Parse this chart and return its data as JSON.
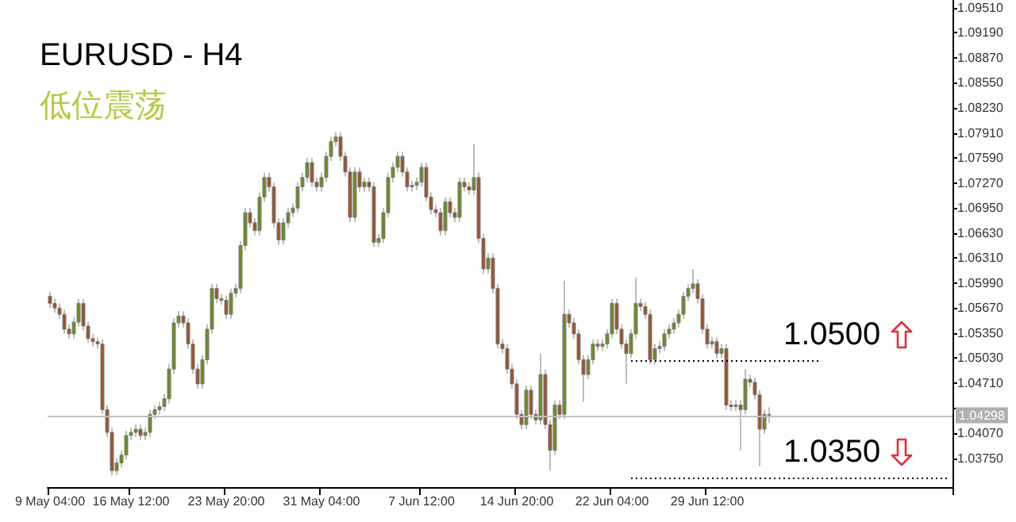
{
  "chart_data": {
    "type": "candlestick",
    "title": "EURUSD - H4",
    "subtitle": "低位震荡",
    "categories": [
      "9 May 04:00",
      null,
      null,
      null,
      null,
      null,
      null,
      null,
      null,
      null,
      null,
      null,
      null,
      null,
      null,
      null,
      null,
      "16 May 12:00",
      null,
      null,
      null,
      null,
      null,
      null,
      null,
      null,
      null,
      null,
      null,
      null,
      null,
      null,
      null,
      null,
      null,
      null,
      null,
      "23 May 20:00",
      null,
      null,
      null,
      null,
      null,
      null,
      null,
      null,
      null,
      null,
      null,
      null,
      null,
      null,
      null,
      null,
      null,
      null,
      null,
      "31 May 04:00",
      null,
      null,
      null,
      null,
      null,
      null,
      null,
      null,
      null,
      null,
      null,
      null,
      null,
      null,
      null,
      null,
      null,
      null,
      null,
      null,
      "7 Jun 12:00",
      null,
      null,
      null,
      null,
      null,
      null,
      null,
      null,
      null,
      null,
      null,
      null,
      null,
      null,
      null,
      null,
      null,
      null,
      null,
      "14 Jun 20:00",
      null,
      null,
      null,
      null,
      null,
      null,
      null,
      null,
      null,
      null,
      null,
      null,
      null,
      null,
      null,
      null,
      null,
      null,
      null,
      "22 Jun 04:00",
      null,
      null,
      null,
      null,
      null,
      null,
      null,
      null,
      null,
      null,
      null,
      null,
      null,
      null,
      null,
      null,
      null,
      null,
      null,
      "29 Jun 12:00",
      null,
      null,
      null,
      null,
      null,
      null,
      null,
      null,
      null,
      null,
      null,
      null,
      null,
      null,
      null,
      null,
      null,
      null,
      null,
      null,
      null,
      null,
      null,
      null,
      null,
      null,
      null,
      null,
      null,
      null,
      null,
      null,
      null,
      null,
      null,
      null,
      null,
      null,
      null,
      null,
      null,
      null,
      null,
      null,
      null,
      null,
      null,
      null,
      null,
      null,
      null
    ],
    "ohlc": [
      [
        1.0582,
        1.0588,
        1.0567,
        1.0573
      ],
      [
        1.0573,
        1.0579,
        1.0561,
        1.0567
      ],
      [
        1.0567,
        1.0573,
        1.0553,
        1.0559
      ],
      [
        1.0559,
        1.0565,
        1.0534,
        1.054
      ],
      [
        1.054,
        1.0546,
        1.0528,
        1.0534
      ],
      [
        1.0534,
        1.0555,
        1.0528,
        1.0549
      ],
      [
        1.0549,
        1.0579,
        1.0543,
        1.0573
      ],
      [
        1.0573,
        1.0579,
        1.0538,
        1.0544
      ],
      [
        1.0544,
        1.055,
        1.0522,
        1.0528
      ],
      [
        1.0528,
        1.0534,
        1.0518,
        1.0524
      ],
      [
        1.0524,
        1.053,
        1.0515,
        1.0521
      ],
      [
        1.0521,
        1.0527,
        1.0431,
        1.0437
      ],
      [
        1.0437,
        1.0443,
        1.0402,
        1.0408
      ],
      [
        1.0408,
        1.0414,
        1.0353,
        1.0359
      ],
      [
        1.0359,
        1.0375,
        1.0353,
        1.0369
      ],
      [
        1.0369,
        1.0385,
        1.0363,
        1.0379
      ],
      [
        1.0379,
        1.041,
        1.0373,
        1.0404
      ],
      [
        1.0404,
        1.0414,
        1.0398,
        1.0408
      ],
      [
        1.0408,
        1.0418,
        1.0402,
        1.0412
      ],
      [
        1.0412,
        1.0418,
        1.0398,
        1.0404
      ],
      [
        1.0404,
        1.0414,
        1.0398,
        1.0408
      ],
      [
        1.0408,
        1.0437,
        1.0402,
        1.0431
      ],
      [
        1.0431,
        1.0443,
        1.0425,
        1.0437
      ],
      [
        1.0437,
        1.0447,
        1.0431,
        1.0441
      ],
      [
        1.0441,
        1.0457,
        1.0435,
        1.0451
      ],
      [
        1.0451,
        1.0495,
        1.0445,
        1.0489
      ],
      [
        1.0489,
        1.0554,
        1.0483,
        1.0548
      ],
      [
        1.0548,
        1.0563,
        1.0542,
        1.0557
      ],
      [
        1.0557,
        1.0563,
        1.0542,
        1.0548
      ],
      [
        1.0548,
        1.0554,
        1.0515,
        1.0521
      ],
      [
        1.0521,
        1.0527,
        1.0483,
        1.0489
      ],
      [
        1.0489,
        1.0495,
        1.0464,
        1.047
      ],
      [
        1.047,
        1.0507,
        1.0464,
        1.0501
      ],
      [
        1.0501,
        1.0546,
        1.0495,
        1.054
      ],
      [
        1.054,
        1.0598,
        1.0534,
        1.0592
      ],
      [
        1.0592,
        1.0598,
        1.0573,
        1.0579
      ],
      [
        1.0579,
        1.0585,
        1.0571,
        1.0577
      ],
      [
        1.0577,
        1.0583,
        1.0553,
        1.0559
      ],
      [
        1.0559,
        1.0592,
        1.0553,
        1.0586
      ],
      [
        1.0586,
        1.0598,
        1.058,
        1.0592
      ],
      [
        1.0592,
        1.0653,
        1.0586,
        1.0647
      ],
      [
        1.0647,
        1.0695,
        1.0641,
        1.0689
      ],
      [
        1.0689,
        1.0695,
        1.067,
        1.0676
      ],
      [
        1.0676,
        1.0682,
        1.066,
        1.0666
      ],
      [
        1.0666,
        1.0715,
        1.066,
        1.0709
      ],
      [
        1.0709,
        1.074,
        1.0703,
        1.0734
      ],
      [
        1.0734,
        1.074,
        1.0716,
        1.0722
      ],
      [
        1.0722,
        1.0728,
        1.067,
        1.0676
      ],
      [
        1.0676,
        1.0682,
        1.0648,
        1.0654
      ],
      [
        1.0654,
        1.0682,
        1.0648,
        1.0676
      ],
      [
        1.0676,
        1.0695,
        1.067,
        1.0689
      ],
      [
        1.0689,
        1.0701,
        1.0683,
        1.0695
      ],
      [
        1.0695,
        1.0728,
        1.0689,
        1.0722
      ],
      [
        1.0722,
        1.074,
        1.0716,
        1.0734
      ],
      [
        1.0734,
        1.0759,
        1.0728,
        1.0753
      ],
      [
        1.0753,
        1.0759,
        1.0722,
        1.0728
      ],
      [
        1.0728,
        1.0734,
        1.0716,
        1.0722
      ],
      [
        1.0722,
        1.074,
        1.0716,
        1.0734
      ],
      [
        1.0734,
        1.0767,
        1.0728,
        1.0761
      ],
      [
        1.0761,
        1.0786,
        1.0755,
        1.078
      ],
      [
        1.078,
        1.0792,
        1.0774,
        1.0786
      ],
      [
        1.0786,
        1.0792,
        1.0755,
        1.0761
      ],
      [
        1.0761,
        1.0767,
        1.0735,
        1.0741
      ],
      [
        1.0741,
        1.0747,
        1.0677,
        1.0683
      ],
      [
        1.0683,
        1.0747,
        1.0677,
        1.0741
      ],
      [
        1.0741,
        1.0747,
        1.0716,
        1.0722
      ],
      [
        1.0722,
        1.0734,
        1.0716,
        1.0728
      ],
      [
        1.0728,
        1.0734,
        1.0716,
        1.0722
      ],
      [
        1.0722,
        1.0728,
        1.0645,
        1.0651
      ],
      [
        1.0651,
        1.0662,
        1.0645,
        1.0656
      ],
      [
        1.0656,
        1.0695,
        1.065,
        1.0689
      ],
      [
        1.0689,
        1.074,
        1.0683,
        1.0734
      ],
      [
        1.0734,
        1.0753,
        1.0728,
        1.0747
      ],
      [
        1.0747,
        1.0767,
        1.0741,
        1.0761
      ],
      [
        1.0761,
        1.0767,
        1.0735,
        1.0741
      ],
      [
        1.0741,
        1.0747,
        1.0716,
        1.0722
      ],
      [
        1.0722,
        1.073,
        1.0716,
        1.0724
      ],
      [
        1.0724,
        1.0734,
        1.0718,
        1.0728
      ],
      [
        1.0728,
        1.0753,
        1.0722,
        1.0747
      ],
      [
        1.0747,
        1.0753,
        1.0703,
        1.0709
      ],
      [
        1.0709,
        1.0715,
        1.0687,
        1.0693
      ],
      [
        1.0693,
        1.0699,
        1.0683,
        1.0689
      ],
      [
        1.0689,
        1.0695,
        1.066,
        1.0666
      ],
      [
        1.0666,
        1.0709,
        1.066,
        1.0703
      ],
      [
        1.0703,
        1.0709,
        1.0683,
        1.0689
      ],
      [
        1.0689,
        1.0695,
        1.0677,
        1.0683
      ],
      [
        1.0683,
        1.0734,
        1.0677,
        1.0728
      ],
      [
        1.0728,
        1.0734,
        1.0716,
        1.0722
      ],
      [
        1.0722,
        1.0728,
        1.0712,
        1.0718
      ],
      [
        1.0718,
        1.0777,
        1.0712,
        1.0734
      ],
      [
        1.0734,
        1.074,
        1.065,
        1.0656
      ],
      [
        1.0656,
        1.0662,
        1.0611,
        1.0617
      ],
      [
        1.0617,
        1.0637,
        1.0611,
        1.0631
      ],
      [
        1.0631,
        1.0637,
        1.0586,
        1.0592
      ],
      [
        1.0592,
        1.0598,
        1.0515,
        1.0521
      ],
      [
        1.0521,
        1.0527,
        1.0509,
        1.0515
      ],
      [
        1.0515,
        1.0521,
        1.0483,
        1.0489
      ],
      [
        1.0489,
        1.0495,
        1.0464,
        1.047
      ],
      [
        1.047,
        1.0476,
        1.0425,
        1.0431
      ],
      [
        1.0431,
        1.0437,
        1.0412,
        1.0418
      ],
      [
        1.0418,
        1.0468,
        1.0412,
        1.0462
      ],
      [
        1.0462,
        1.0468,
        1.0425,
        1.0431
      ],
      [
        1.0431,
        1.0437,
        1.0418,
        1.0424
      ],
      [
        1.0424,
        1.0509,
        1.0418,
        1.0482
      ],
      [
        1.0482,
        1.0488,
        1.0412,
        1.0418
      ],
      [
        1.0418,
        1.0424,
        1.0359,
        1.0385
      ],
      [
        1.0385,
        1.0449,
        1.0379,
        1.0443
      ],
      [
        1.0443,
        1.0449,
        1.0425,
        1.0431
      ],
      [
        1.0431,
        1.0602,
        1.0425,
        1.0559
      ],
      [
        1.0559,
        1.0565,
        1.0542,
        1.0548
      ],
      [
        1.0548,
        1.0554,
        1.0528,
        1.0534
      ],
      [
        1.0534,
        1.054,
        1.0495,
        1.0501
      ],
      [
        1.0501,
        1.0507,
        1.0447,
        1.0482
      ],
      [
        1.0482,
        1.0507,
        1.0476,
        1.0501
      ],
      [
        1.0501,
        1.0527,
        1.0495,
        1.0521
      ],
      [
        1.0521,
        1.0527,
        1.0512,
        1.0518
      ],
      [
        1.0518,
        1.0527,
        1.0512,
        1.0521
      ],
      [
        1.0521,
        1.054,
        1.0515,
        1.0534
      ],
      [
        1.0534,
        1.0579,
        1.0528,
        1.0573
      ],
      [
        1.0573,
        1.0579,
        1.0534,
        1.054
      ],
      [
        1.054,
        1.0546,
        1.0515,
        1.0521
      ],
      [
        1.0521,
        1.0527,
        1.047,
        1.0509
      ],
      [
        1.0509,
        1.054,
        1.0503,
        1.0534
      ],
      [
        1.0534,
        1.0606,
        1.0528,
        1.0573
      ],
      [
        1.0573,
        1.0579,
        1.0563,
        1.0569
      ],
      [
        1.0569,
        1.0575,
        1.0553,
        1.0559
      ],
      [
        1.0559,
        1.0565,
        1.0495,
        1.0501
      ],
      [
        1.0501,
        1.0521,
        1.0495,
        1.0515
      ],
      [
        1.0515,
        1.0524,
        1.0509,
        1.0518
      ],
      [
        1.0518,
        1.054,
        1.0512,
        1.0534
      ],
      [
        1.0534,
        1.0546,
        1.0528,
        1.054
      ],
      [
        1.054,
        1.0554,
        1.0534,
        1.0548
      ],
      [
        1.0548,
        1.0565,
        1.0542,
        1.0559
      ],
      [
        1.0559,
        1.0588,
        1.0553,
        1.0582
      ],
      [
        1.0582,
        1.0598,
        1.0576,
        1.0592
      ],
      [
        1.0592,
        1.0617,
        1.0586,
        1.0598
      ],
      [
        1.0598,
        1.0604,
        1.0573,
        1.0579
      ],
      [
        1.0579,
        1.0585,
        1.0534,
        1.054
      ],
      [
        1.054,
        1.0546,
        1.0515,
        1.0521
      ],
      [
        1.0521,
        1.053,
        1.0515,
        1.0524
      ],
      [
        1.0524,
        1.053,
        1.0503,
        1.0509
      ],
      [
        1.0509,
        1.0521,
        1.0503,
        1.0515
      ],
      [
        1.0515,
        1.0521,
        1.0437,
        1.0443
      ],
      [
        1.0443,
        1.0449,
        1.0435,
        1.0441
      ],
      [
        1.0441,
        1.0449,
        1.0435,
        1.0443
      ],
      [
        1.0443,
        1.0449,
        1.0385,
        1.0437
      ],
      [
        1.0437,
        1.0489,
        1.0431,
        1.0476
      ],
      [
        1.0476,
        1.0482,
        1.0466,
        1.0472
      ],
      [
        1.0472,
        1.0478,
        1.045,
        1.0456
      ],
      [
        1.0456,
        1.0462,
        1.0365,
        1.0412
      ],
      [
        1.0412,
        1.0437,
        1.0406,
        1.0431
      ],
      [
        1.0431,
        1.044,
        1.042,
        1.043
      ],
      null,
      null,
      null,
      null,
      null,
      null,
      null,
      null,
      null,
      null,
      null,
      null,
      null,
      null,
      null,
      null,
      null,
      null,
      null,
      null,
      null,
      null,
      null,
      null,
      null,
      null,
      null,
      null,
      null,
      null,
      null,
      null,
      null,
      null,
      null,
      null,
      null,
      null
    ],
    "colors": [
      "#a0522d",
      "#a0522d",
      "#a0522d",
      "#a0522d",
      "#a0522d",
      "#6b8e23",
      "#6b8e23",
      "#a0522d",
      "#a0522d",
      "#a0522d",
      "#a0522d",
      "#a0522d",
      "#a0522d",
      "#a0522d",
      "#6b8e23",
      "#6b8e23",
      "#6b8e23",
      "#6b8e23",
      "#6b8e23",
      "#a0522d",
      "#6b8e23",
      "#6b8e23",
      "#6b8e23",
      "#6b8e23",
      "#6b8e23",
      "#6b8e23",
      "#6b8e23",
      "#6b8e23",
      "#a0522d",
      "#a0522d",
      "#a0522d",
      "#a0522d",
      "#6b8e23",
      "#6b8e23",
      "#6b8e23",
      "#a0522d",
      "#a0522d",
      "#a0522d",
      "#6b8e23",
      "#6b8e23",
      "#6b8e23",
      "#6b8e23",
      "#a0522d",
      "#a0522d",
      "#6b8e23",
      "#6b8e23",
      "#a0522d",
      "#a0522d",
      "#a0522d",
      "#6b8e23",
      "#6b8e23",
      "#6b8e23",
      "#6b8e23",
      "#6b8e23",
      "#6b8e23",
      "#a0522d",
      "#a0522d",
      "#6b8e23",
      "#6b8e23",
      "#6b8e23",
      "#6b8e23",
      "#a0522d",
      "#a0522d",
      "#a0522d",
      "#6b8e23",
      "#a0522d",
      "#6b8e23",
      "#a0522d",
      "#a0522d",
      "#6b8e23",
      "#6b8e23",
      "#6b8e23",
      "#6b8e23",
      "#6b8e23",
      "#a0522d",
      "#a0522d",
      "#6b8e23",
      "#6b8e23",
      "#6b8e23",
      "#a0522d",
      "#a0522d",
      "#a0522d",
      "#a0522d",
      "#6b8e23",
      "#a0522d",
      "#a0522d",
      "#6b8e23",
      "#a0522d",
      "#a0522d",
      "#6b8e23",
      "#a0522d",
      "#a0522d",
      "#6b8e23",
      "#a0522d",
      "#a0522d",
      "#a0522d",
      "#a0522d",
      "#a0522d",
      "#a0522d",
      "#a0522d",
      "#6b8e23",
      "#a0522d",
      "#a0522d",
      "#6b8e23",
      "#a0522d",
      "#a0522d",
      "#6b8e23",
      "#a0522d",
      "#6b8e23",
      "#a0522d",
      "#a0522d",
      "#a0522d",
      "#a0522d",
      "#6b8e23",
      "#6b8e23",
      "#a0522d",
      "#6b8e23",
      "#6b8e23",
      "#6b8e23",
      "#a0522d",
      "#a0522d",
      "#a0522d",
      "#6b8e23",
      "#6b8e23",
      "#a0522d",
      "#a0522d",
      "#a0522d",
      "#6b8e23",
      "#6b8e23",
      "#6b8e23",
      "#6b8e23",
      "#6b8e23",
      "#6b8e23",
      "#6b8e23",
      "#6b8e23",
      "#6b8e23",
      "#a0522d",
      "#a0522d",
      "#a0522d",
      "#6b8e23",
      "#a0522d",
      "#6b8e23",
      "#a0522d",
      "#a0522d",
      "#6b8e23",
      "#a0522d",
      "#6b8e23",
      "#a0522d",
      "#a0522d",
      "#a0522d",
      "#6b8e23",
      "#a0522d",
      null,
      null,
      null,
      null,
      null,
      null,
      null,
      null,
      null,
      null,
      null,
      null,
      null,
      null,
      null,
      null,
      null,
      null,
      null,
      null,
      null,
      null,
      null,
      null,
      null,
      null,
      null,
      null,
      null,
      null,
      null,
      null,
      null,
      null,
      null,
      null,
      null,
      null
    ],
    "ylim": [
      1.0338,
      1.0961
    ],
    "yticks": [
      {
        "value": 1.0375,
        "label": "1.03750"
      },
      {
        "value": 1.0407,
        "label": "1.04070"
      },
      {
        "value": 1.0439,
        "label": null
      },
      {
        "value": 1.0471,
        "label": "1.04710"
      },
      {
        "value": 1.0503,
        "label": "1.05030"
      },
      {
        "value": 1.0535,
        "label": "1.05350"
      },
      {
        "value": 1.0567,
        "label": "1.05670"
      },
      {
        "value": 1.0599,
        "label": "1.05990"
      },
      {
        "value": 1.0631,
        "label": "1.06310"
      },
      {
        "value": 1.0663,
        "label": "1.06630"
      },
      {
        "value": 1.0695,
        "label": "1.06950"
      },
      {
        "value": 1.0727,
        "label": "1.07270"
      },
      {
        "value": 1.0759,
        "label": "1.07590"
      },
      {
        "value": 1.0791,
        "label": "1.07910"
      },
      {
        "value": 1.0823,
        "label": "1.08230"
      },
      {
        "value": 1.0855,
        "label": "1.08550"
      },
      {
        "value": 1.0887,
        "label": "1.08870"
      },
      {
        "value": 1.0919,
        "label": "1.09190"
      },
      {
        "value": 1.0951,
        "label": "1.09510"
      }
    ],
    "ref_lines": [
      {
        "axis": "y",
        "value": 1.04298,
        "label": "1.04298",
        "color": "#c0c0c0",
        "line_style": "solid"
      },
      {
        "axis": "y",
        "value": 1.05,
        "label": "1.0500",
        "color": "#000000",
        "line_style": "dotted"
      },
      {
        "axis": "y",
        "value": 1.035,
        "label": "1.0350",
        "color": "#000000",
        "line_style": "dotted"
      }
    ]
  }
}
